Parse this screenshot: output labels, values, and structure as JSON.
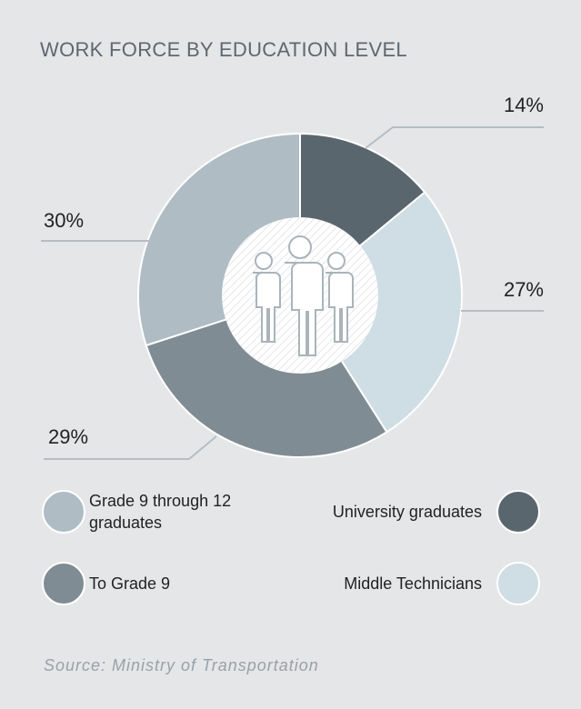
{
  "chart_data": {
    "type": "donut",
    "title": "WORK FORCE BY EDUCATION LEVEL",
    "categories": [
      "University graduates",
      "Middle Technicians",
      "To Grade 9",
      "Grade 9 through 12 graduates"
    ],
    "values": [
      14,
      27,
      29,
      30
    ],
    "value_labels": [
      "14%",
      "27%",
      "29%",
      "30%"
    ],
    "colors": [
      "#5a666d",
      "#cfdde4",
      "#7f8c93",
      "#afbcc3"
    ],
    "source": "Source: Ministry of Transportation"
  }
}
